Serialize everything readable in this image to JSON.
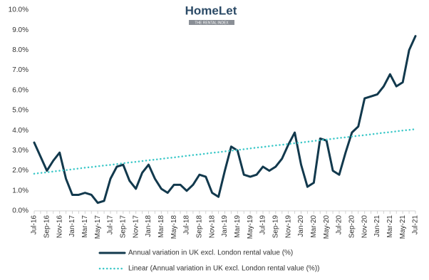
{
  "logo": {
    "name": "HomeLet",
    "tagline": "THE RENTAL INDEX"
  },
  "chart_data": {
    "type": "line",
    "categories": [
      "Jul-16",
      null,
      "Sep-16",
      null,
      "Nov-16",
      null,
      "Jan-17",
      null,
      "Mar-17",
      null,
      "May-17",
      null,
      "Jul-17",
      null,
      "Sep-17",
      null,
      "Nov-17",
      null,
      "Jan-18",
      null,
      "Mar-18",
      null,
      "May-18",
      null,
      "Jul-18",
      null,
      "Sep-18",
      null,
      "Nov-18",
      null,
      "Jan-19",
      null,
      "Mar-19",
      null,
      "May-19",
      null,
      "Jul-19",
      null,
      "Sep-19",
      null,
      "Nov-19",
      null,
      "Jan-20",
      null,
      "Mar-20",
      null,
      "May-20",
      null,
      "Jul-20",
      null,
      "Sep-20",
      null,
      "Nov-20",
      null,
      "Jan-21",
      null,
      "Mar-21",
      null,
      "May-21",
      null,
      "Jul-21"
    ],
    "series": [
      {
        "name": "Annual variation in UK excl. London rental value (%)",
        "color": "#12394d",
        "style": "solid",
        "values": [
          3.4,
          2.7,
          2.0,
          2.5,
          2.9,
          1.6,
          0.8,
          0.8,
          0.9,
          0.8,
          0.4,
          0.5,
          1.6,
          2.2,
          2.3,
          1.5,
          1.1,
          1.9,
          2.3,
          1.6,
          1.1,
          0.9,
          1.3,
          1.3,
          1.0,
          1.3,
          1.8,
          1.7,
          0.9,
          0.7,
          2.0,
          3.2,
          3.0,
          1.8,
          1.7,
          1.8,
          2.2,
          2.0,
          2.2,
          2.6,
          3.3,
          3.9,
          2.3,
          1.2,
          1.4,
          3.6,
          3.5,
          2.0,
          1.8,
          2.9,
          3.9,
          4.2,
          5.6,
          5.7,
          5.8,
          6.2,
          6.8,
          6.2,
          6.4,
          8.0,
          8.7
        ]
      },
      {
        "name": "Linear (Annual variation in UK excl. London rental value (%))",
        "color": "#3cc8c8",
        "style": "dotted",
        "values": [
          1.85,
          1.89,
          1.92,
          1.96,
          2.0,
          2.03,
          2.07,
          2.11,
          2.15,
          2.18,
          2.22,
          2.26,
          2.29,
          2.33,
          2.37,
          2.41,
          2.44,
          2.48,
          2.52,
          2.55,
          2.59,
          2.63,
          2.66,
          2.7,
          2.74,
          2.78,
          2.81,
          2.85,
          2.89,
          2.92,
          2.96,
          3.0,
          3.03,
          3.07,
          3.11,
          3.15,
          3.18,
          3.22,
          3.26,
          3.29,
          3.33,
          3.37,
          3.4,
          3.44,
          3.48,
          3.52,
          3.55,
          3.59,
          3.63,
          3.66,
          3.7,
          3.74,
          3.77,
          3.81,
          3.85,
          3.89,
          3.92,
          3.96,
          4.0,
          4.03,
          4.07
        ]
      }
    ],
    "ylim": [
      0,
      10
    ],
    "yticks": [
      {
        "value": 0,
        "label": "0.0%"
      },
      {
        "value": 1,
        "label": "1.0%"
      },
      {
        "value": 2,
        "label": "2.0%"
      },
      {
        "value": 3,
        "label": "3.0%"
      },
      {
        "value": 4,
        "label": "4.0%"
      },
      {
        "value": 5,
        "label": "5.0%"
      },
      {
        "value": 6,
        "label": "6.0%"
      },
      {
        "value": 7,
        "label": "7.0%"
      },
      {
        "value": 8,
        "label": "8.0%"
      },
      {
        "value": 9,
        "label": "9.0%"
      },
      {
        "value": 10,
        "label": "10.0%"
      }
    ],
    "grid": false,
    "legend": "bottom"
  }
}
